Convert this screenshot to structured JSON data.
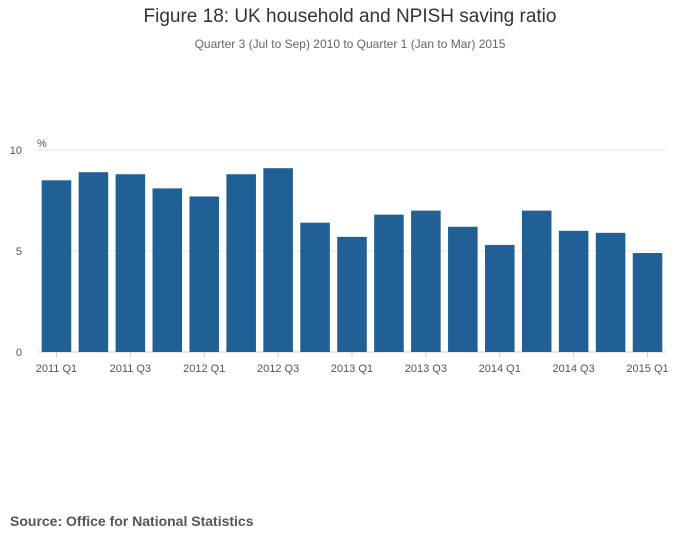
{
  "chart_data": {
    "type": "bar",
    "title": "Figure 18: UK household and NPISH saving ratio",
    "subtitle": "Quarter 3 (Jul to Sep) 2010 to Quarter 1 (Jan to Mar) 2015",
    "unit_label": "%",
    "ylim": [
      0,
      10
    ],
    "yticks": [
      0,
      5,
      10
    ],
    "grid": true,
    "categories": [
      "2011 Q1",
      "2011 Q2",
      "2011 Q3",
      "2011 Q4",
      "2012 Q1",
      "2012 Q2",
      "2012 Q3",
      "2012 Q4",
      "2013 Q1",
      "2013 Q2",
      "2013 Q3",
      "2013 Q4",
      "2014 Q1",
      "2014 Q2",
      "2014 Q3",
      "2014 Q4",
      "2015 Q1"
    ],
    "tick_labels": [
      "2011 Q1",
      "2011 Q3",
      "2012 Q1",
      "2012 Q3",
      "2013 Q1",
      "2013 Q3",
      "2014 Q1",
      "2014 Q3",
      "2015 Q1"
    ],
    "values": [
      8.5,
      8.9,
      8.8,
      8.1,
      7.7,
      8.8,
      9.1,
      6.4,
      5.7,
      6.8,
      7.0,
      6.2,
      5.3,
      7.0,
      6.0,
      5.9,
      4.9
    ],
    "bar_color": "#206095",
    "source": "Source: Office for National Statistics"
  }
}
